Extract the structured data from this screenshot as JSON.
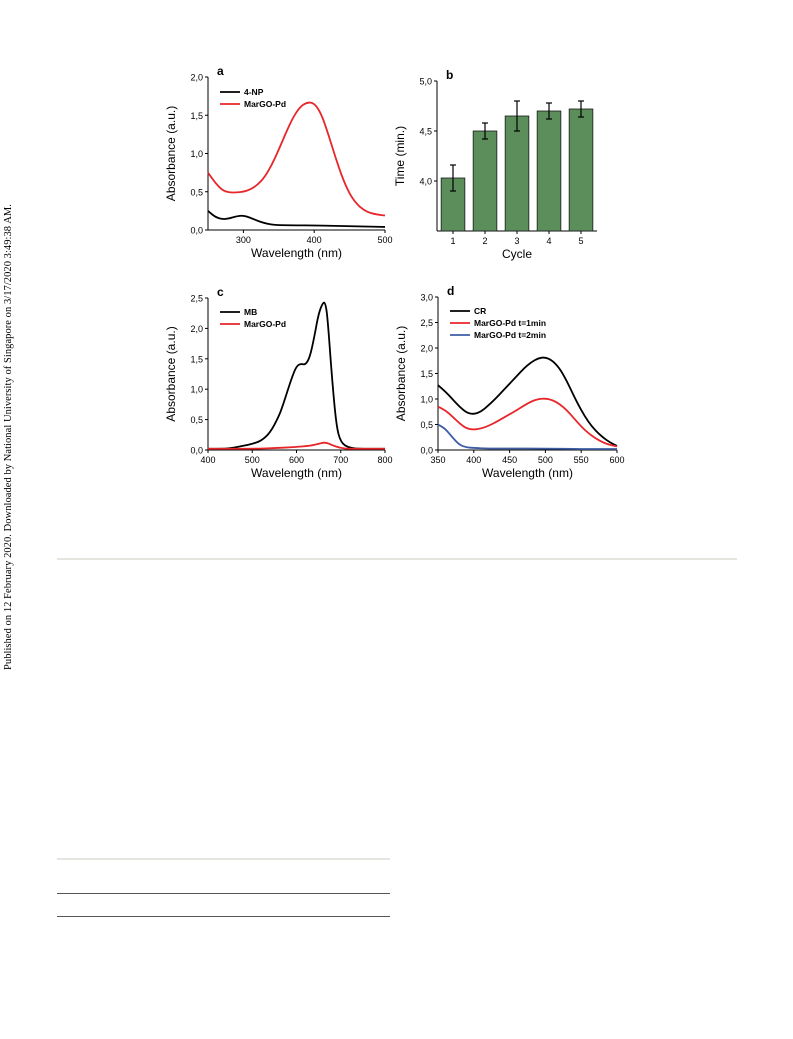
{
  "side_note": "Published on 12 February 2020. Downloaded by National University of Singapore on 3/17/2020 3:49:38 AM.",
  "colors": {
    "black": "#000000",
    "red": "#e8262a",
    "blue": "#3c5da5",
    "bar_fill": "#5b8e5b",
    "separator": "#e3e6df"
  },
  "chart_data": [
    {
      "type": "line",
      "panel_label": "a",
      "title": "",
      "xlabel": "Wavelength (nm)",
      "ylabel": "Absorbance (a.u.)",
      "xlim": [
        250,
        500
      ],
      "ylim": [
        0,
        2.0
      ],
      "xticks": [
        300,
        400,
        500
      ],
      "xtick_labels": [
        "300",
        "400",
        "500"
      ],
      "yticks": [
        0,
        0.5,
        1.0,
        1.5,
        2.0
      ],
      "ytick_labels": [
        "0,0",
        "0,5",
        "1,0",
        "1,5",
        "2,0"
      ],
      "legend_position": "top-left",
      "series": [
        {
          "name": "4-NP",
          "color": "#000000",
          "x": [
            250,
            260,
            270,
            280,
            290,
            300,
            310,
            320,
            330,
            340,
            350,
            375,
            400,
            425,
            450,
            475,
            500
          ],
          "y": [
            0.25,
            0.17,
            0.14,
            0.15,
            0.18,
            0.19,
            0.16,
            0.12,
            0.09,
            0.07,
            0.065,
            0.06,
            0.06,
            0.055,
            0.05,
            0.045,
            0.04
          ]
        },
        {
          "name": "MarGO-Pd",
          "color": "#e8262a",
          "x": [
            250,
            260,
            270,
            280,
            290,
            300,
            310,
            320,
            330,
            340,
            350,
            360,
            370,
            380,
            390,
            400,
            410,
            420,
            430,
            440,
            450,
            460,
            470,
            480,
            490,
            500
          ],
          "y": [
            0.75,
            0.62,
            0.52,
            0.49,
            0.49,
            0.5,
            0.53,
            0.59,
            0.69,
            0.85,
            1.05,
            1.27,
            1.47,
            1.61,
            1.67,
            1.66,
            1.52,
            1.25,
            0.95,
            0.68,
            0.47,
            0.34,
            0.26,
            0.22,
            0.2,
            0.19
          ]
        }
      ]
    },
    {
      "type": "bar",
      "panel_label": "b",
      "title": "",
      "xlabel": "Cycle",
      "ylabel": "Time (min.)",
      "ylim": [
        3.5,
        5.0
      ],
      "yticks": [
        4.0,
        4.5,
        5.0
      ],
      "ytick_labels": [
        "4,0",
        "4,5",
        "5,0"
      ],
      "categories": [
        "1",
        "2",
        "3",
        "4",
        "5"
      ],
      "values": [
        4.03,
        4.5,
        4.65,
        4.7,
        4.72
      ],
      "errors": [
        0.13,
        0.08,
        0.15,
        0.08,
        0.08
      ],
      "color": "#5b8e5b"
    },
    {
      "type": "line",
      "panel_label": "c",
      "title": "",
      "xlabel": "Wavelength (nm)",
      "ylabel": "Absorbance (a.u.)",
      "xlim": [
        400,
        800
      ],
      "ylim": [
        0,
        2.5
      ],
      "xticks": [
        400,
        500,
        600,
        700,
        800
      ],
      "xtick_labels": [
        "400",
        "500",
        "600",
        "700",
        "800"
      ],
      "yticks": [
        0,
        0.5,
        1.0,
        1.5,
        2.0,
        2.5
      ],
      "ytick_labels": [
        "0,0",
        "0,5",
        "1,0",
        "1,5",
        "2,0",
        "2,5"
      ],
      "legend_position": "top-left",
      "series": [
        {
          "name": "MB",
          "color": "#000000",
          "x": [
            400,
            440,
            460,
            480,
            500,
            520,
            540,
            560,
            570,
            580,
            590,
            600,
            610,
            620,
            630,
            640,
            650,
            660,
            665,
            670,
            680,
            690,
            700,
            720,
            750,
            800
          ],
          "y": [
            0.02,
            0.02,
            0.04,
            0.07,
            0.1,
            0.15,
            0.28,
            0.55,
            0.75,
            0.98,
            1.2,
            1.38,
            1.42,
            1.4,
            1.52,
            1.85,
            2.25,
            2.43,
            2.42,
            2.2,
            1.2,
            0.4,
            0.12,
            0.03,
            0.02,
            0.02
          ]
        },
        {
          "name": "MarGO-Pd",
          "color": "#e8262a",
          "x": [
            400,
            500,
            550,
            600,
            630,
            650,
            665,
            680,
            700,
            720,
            800
          ],
          "y": [
            0.02,
            0.02,
            0.03,
            0.05,
            0.07,
            0.1,
            0.13,
            0.08,
            0.03,
            0.02,
            0.02
          ]
        }
      ]
    },
    {
      "type": "line",
      "panel_label": "d",
      "title": "",
      "xlabel": "Wavelength (nm)",
      "ylabel": "Absorbance (a.u.)",
      "xlim": [
        350,
        600
      ],
      "ylim": [
        0,
        3.0
      ],
      "xticks": [
        350,
        400,
        450,
        500,
        550,
        600
      ],
      "xtick_labels": [
        "350",
        "400",
        "450",
        "500",
        "550",
        "600"
      ],
      "yticks": [
        0,
        0.5,
        1.0,
        1.5,
        2.0,
        2.5,
        3.0
      ],
      "ytick_labels": [
        "0,0",
        "0,5",
        "1,0",
        "1,5",
        "2,0",
        "2,5",
        "3,0"
      ],
      "legend_position": "top-left",
      "series": [
        {
          "name": "CR",
          "color": "#000000",
          "x": [
            350,
            360,
            370,
            380,
            390,
            400,
            410,
            420,
            430,
            440,
            450,
            460,
            470,
            480,
            490,
            500,
            510,
            520,
            530,
            540,
            550,
            560,
            570,
            580,
            590,
            600
          ],
          "y": [
            1.27,
            1.15,
            1.0,
            0.85,
            0.73,
            0.7,
            0.75,
            0.87,
            1.0,
            1.15,
            1.3,
            1.45,
            1.6,
            1.72,
            1.8,
            1.82,
            1.75,
            1.6,
            1.35,
            1.05,
            0.78,
            0.55,
            0.38,
            0.25,
            0.15,
            0.08
          ]
        },
        {
          "name": "MarGO-Pd t=1min",
          "color": "#e8262a",
          "x": [
            350,
            360,
            370,
            380,
            390,
            400,
            410,
            420,
            430,
            440,
            450,
            460,
            470,
            480,
            490,
            500,
            510,
            520,
            530,
            540,
            550,
            560,
            570,
            580,
            590,
            600
          ],
          "y": [
            0.85,
            0.78,
            0.66,
            0.52,
            0.42,
            0.4,
            0.42,
            0.47,
            0.54,
            0.62,
            0.7,
            0.78,
            0.87,
            0.95,
            1.0,
            1.01,
            0.98,
            0.9,
            0.78,
            0.62,
            0.46,
            0.33,
            0.23,
            0.15,
            0.1,
            0.07
          ]
        },
        {
          "name": "MarGO-Pd t=2min",
          "color": "#3c5da5",
          "x": [
            350,
            360,
            370,
            380,
            390,
            400,
            420,
            450,
            500,
            550,
            600
          ],
          "y": [
            0.5,
            0.42,
            0.25,
            0.1,
            0.05,
            0.04,
            0.03,
            0.03,
            0.03,
            0.02,
            0.02
          ]
        }
      ]
    }
  ]
}
